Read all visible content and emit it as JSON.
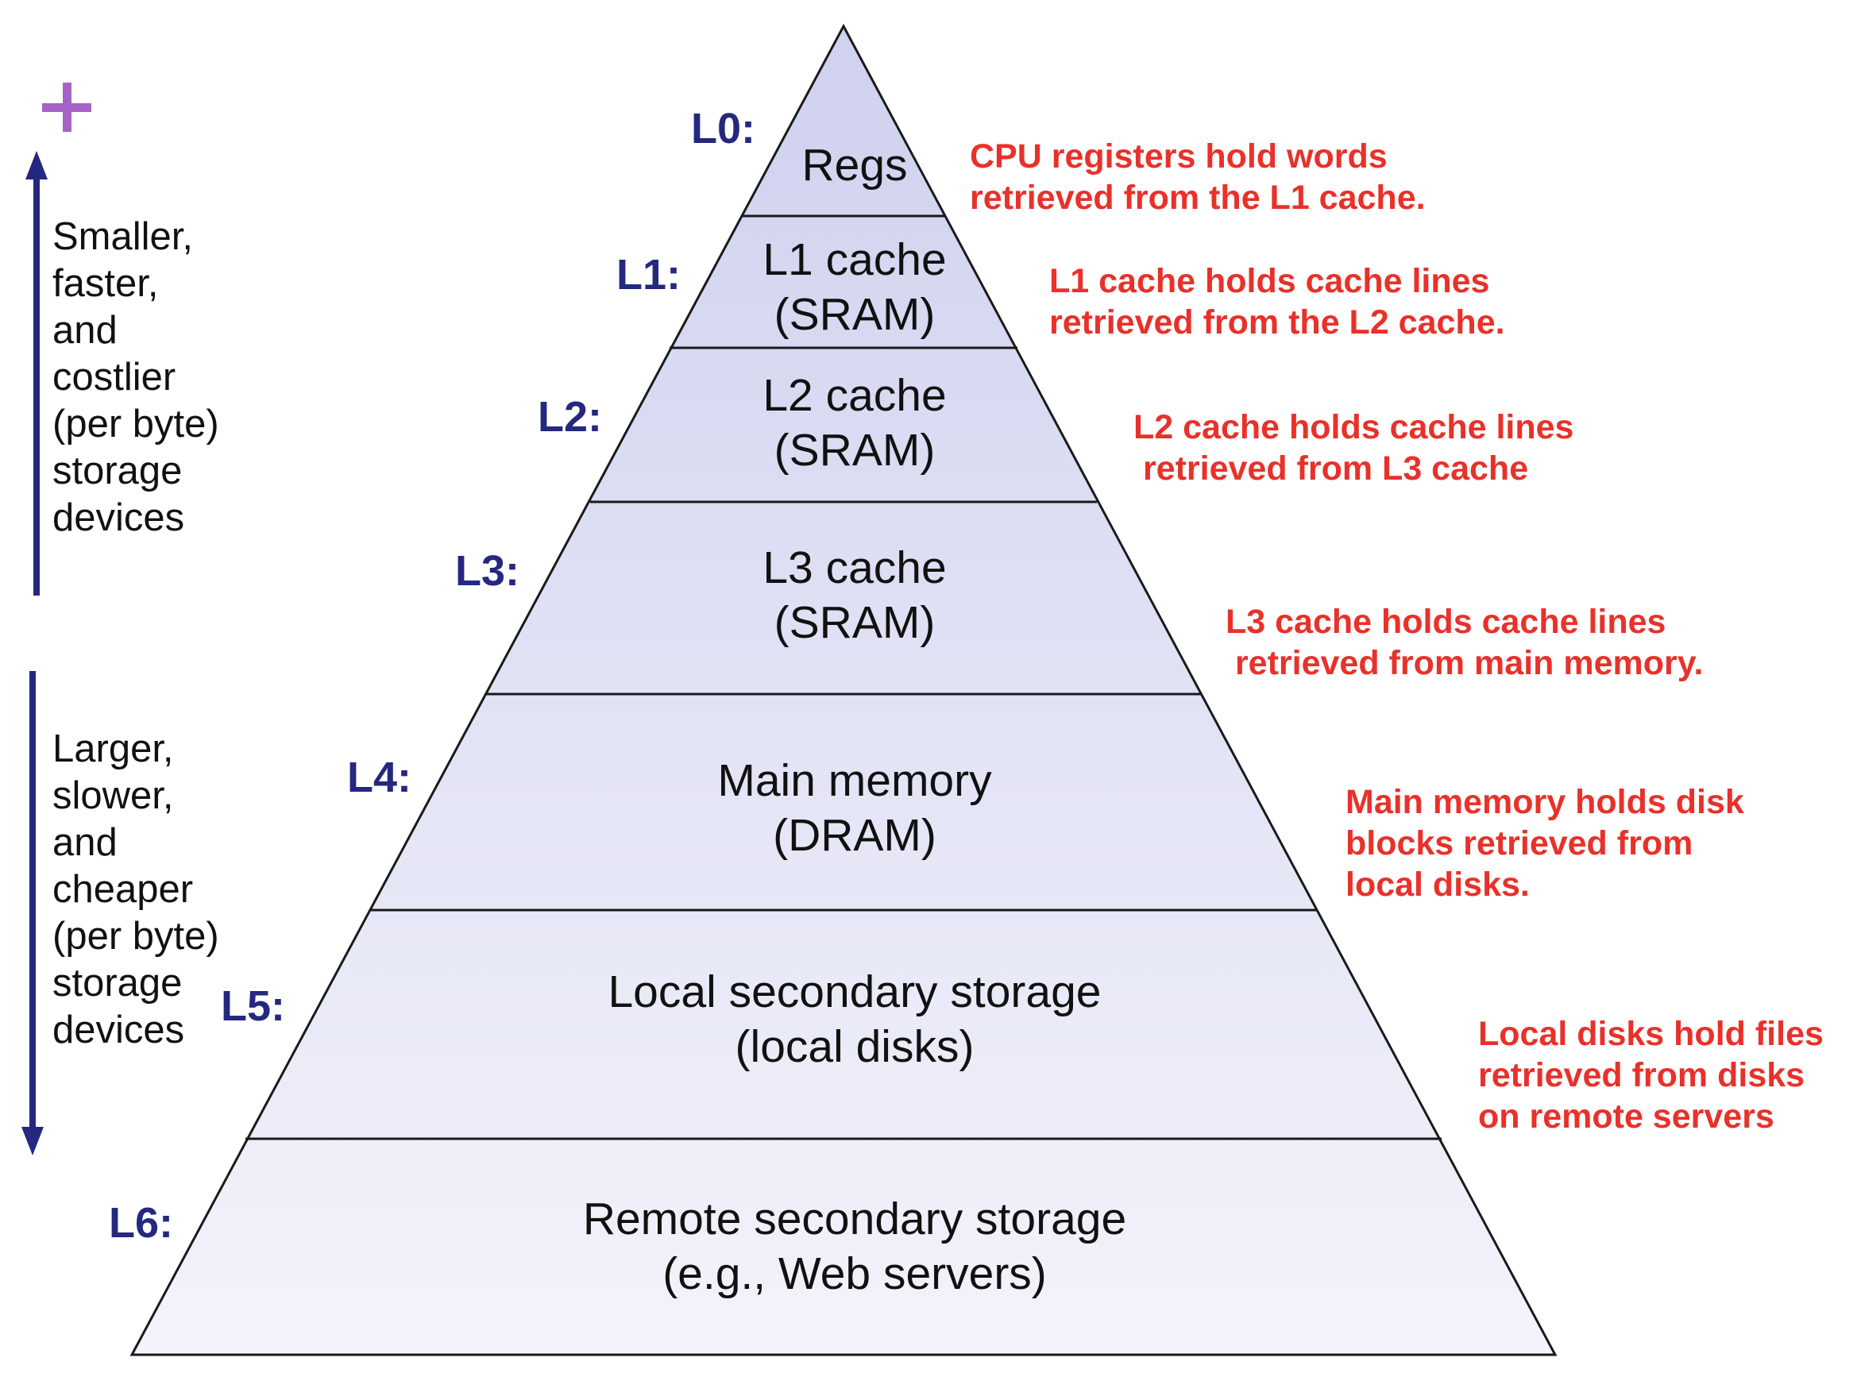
{
  "levels": [
    {
      "label": "L0:",
      "lines": [
        "Regs"
      ],
      "note": [
        "CPU registers hold words",
        "retrieved from the L1 cache."
      ]
    },
    {
      "label": "L1:",
      "lines": [
        "L1 cache",
        "(SRAM)"
      ],
      "note": [
        "L1 cache holds cache lines",
        "retrieved from the L2 cache."
      ]
    },
    {
      "label": "L2:",
      "lines": [
        "L2 cache",
        "(SRAM)"
      ],
      "note": [
        "L2 cache holds cache lines",
        " retrieved from L3 cache"
      ]
    },
    {
      "label": "L3:",
      "lines": [
        "L3 cache",
        "(SRAM)"
      ],
      "note": [
        "L3 cache holds cache lines",
        " retrieved from main memory."
      ]
    },
    {
      "label": "L4:",
      "lines": [
        "Main memory",
        "(DRAM)"
      ],
      "note": [
        "Main memory holds disk",
        "blocks retrieved from",
        "local disks."
      ]
    },
    {
      "label": "L5:",
      "lines": [
        "Local secondary storage",
        "(local disks)"
      ],
      "note": [
        "Local disks hold files",
        "retrieved from disks",
        "on remote servers"
      ]
    },
    {
      "label": "L6:",
      "lines": [
        "Remote secondary storage",
        "(e.g., Web servers)"
      ],
      "note": []
    }
  ],
  "side": {
    "top_lines": [
      "Smaller,",
      "faster,",
      "and",
      "costlier",
      "(per byte)",
      "storage",
      "devices"
    ],
    "bottom_lines": [
      "Larger,",
      "slower,",
      "and",
      "cheaper",
      "(per byte)",
      "storage",
      "devices"
    ],
    "plus_icon": "plus-icon"
  },
  "colors": {
    "label": "#24287e",
    "note": "#e8312a",
    "arrow": "#24287e",
    "plus": "#a563c7",
    "fill_top": "#cfd1ee",
    "fill_bottom": "#f3f3fb"
  }
}
